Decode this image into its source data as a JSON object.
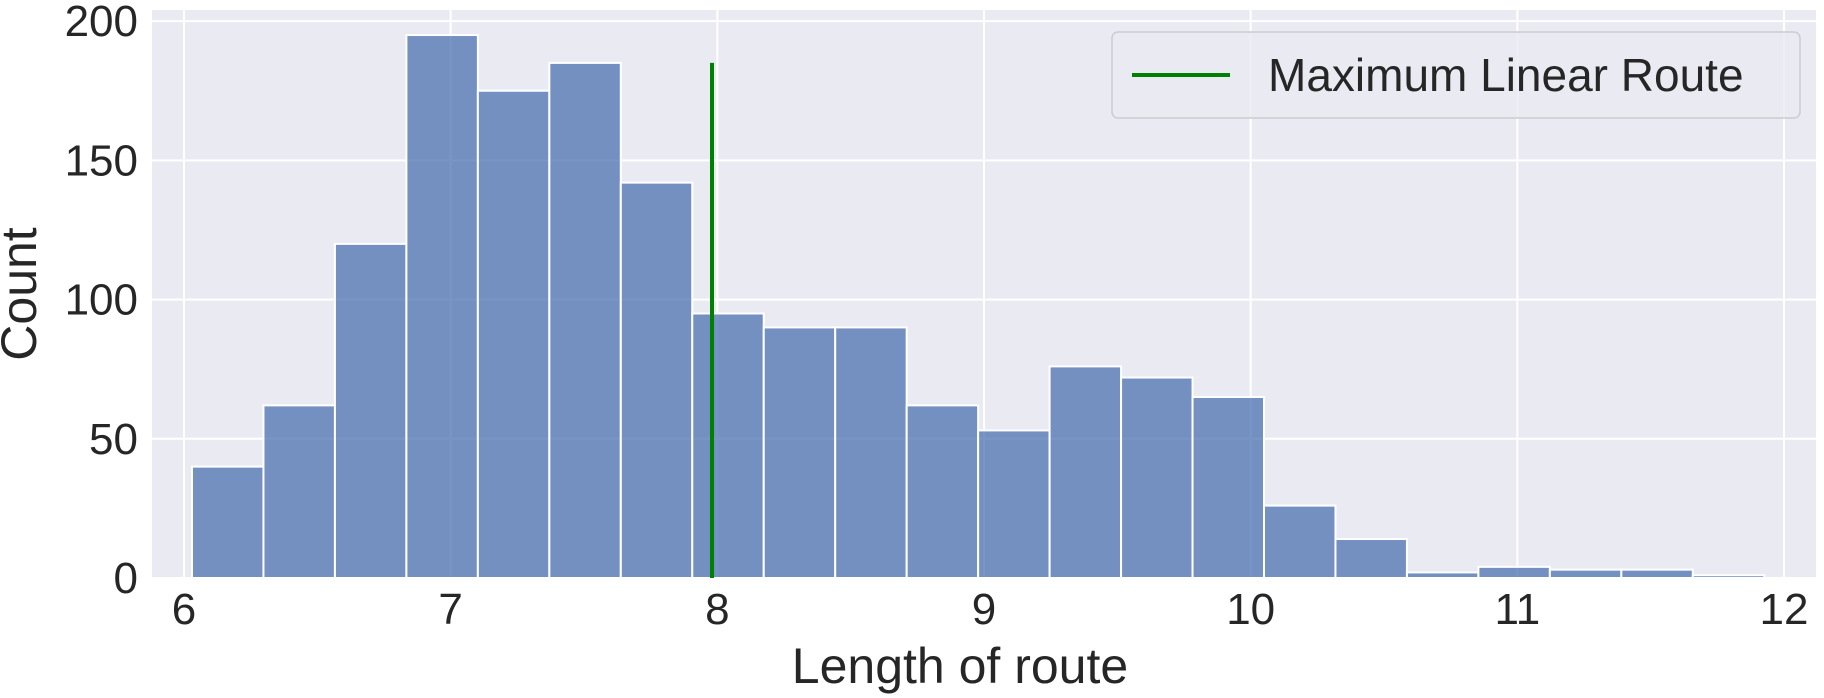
{
  "chart_data": {
    "type": "bar",
    "subtype": "histogram",
    "title": "",
    "xlabel": "Length of route",
    "ylabel": "Count",
    "xlim": [
      5.88,
      12.12
    ],
    "ylim": [
      0,
      204
    ],
    "xticks": [
      6,
      7,
      8,
      9,
      10,
      11,
      12
    ],
    "yticks": [
      0,
      50,
      100,
      150,
      200
    ],
    "grid": true,
    "bin_start": 6.03,
    "bin_width": 0.268,
    "values": [
      40,
      62,
      120,
      195,
      175,
      185,
      142,
      95,
      90,
      90,
      62,
      53,
      76,
      72,
      65,
      26,
      14,
      2,
      4,
      3,
      3,
      1
    ],
    "bar_color": "#4c72b0",
    "background_color": "#eaeaf2",
    "vline": {
      "x": 7.98,
      "ymin": 0,
      "ymax": 185,
      "color": "#008000",
      "label": "Maximum Linear Route"
    },
    "legend": {
      "position": "top-right",
      "entries": [
        "Maximum Linear Route"
      ]
    }
  }
}
